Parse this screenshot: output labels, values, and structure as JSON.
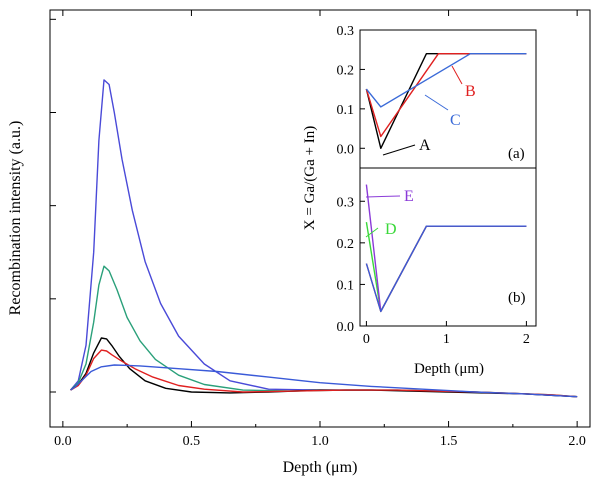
{
  "chart_data": [
    {
      "type": "line",
      "xlabel": "Depth (μm)",
      "ylabel": "Recombination intensity (a.u.)",
      "xlim": [
        -0.05,
        2.05
      ],
      "ylim": [
        0,
        4.1
      ],
      "x_ticks": [
        "0.0",
        "0.5",
        "1.0",
        "1.5",
        "2.0"
      ],
      "y_ticks_labeled": false,
      "grid": false,
      "series": [
        {
          "color": "#4a4ad8",
          "x": [
            0.03,
            0.06,
            0.09,
            0.12,
            0.14,
            0.16,
            0.18,
            0.2,
            0.23,
            0.27,
            0.32,
            0.38,
            0.45,
            0.55,
            0.65,
            0.8,
            1.0,
            1.2,
            1.5,
            1.8,
            2.0
          ],
          "y": [
            0.02,
            0.12,
            0.5,
            1.5,
            2.7,
            3.35,
            3.3,
            3.0,
            2.5,
            1.95,
            1.4,
            0.95,
            0.6,
            0.3,
            0.12,
            0.03,
            0.02,
            0.02,
            0.01,
            -0.02,
            -0.05
          ]
        },
        {
          "color": "#2aa07a",
          "x": [
            0.03,
            0.06,
            0.09,
            0.12,
            0.14,
            0.16,
            0.18,
            0.21,
            0.25,
            0.3,
            0.36,
            0.45,
            0.55,
            0.7,
            0.9,
            1.1,
            1.3,
            1.6,
            1.9,
            2.0
          ],
          "y": [
            0.02,
            0.1,
            0.3,
            0.75,
            1.15,
            1.35,
            1.3,
            1.1,
            0.8,
            0.55,
            0.35,
            0.18,
            0.08,
            0.02,
            0.01,
            0.02,
            0.02,
            0.0,
            -0.03,
            -0.05
          ]
        },
        {
          "color": "#000000",
          "x": [
            0.03,
            0.06,
            0.09,
            0.12,
            0.15,
            0.17,
            0.19,
            0.22,
            0.26,
            0.32,
            0.4,
            0.5,
            0.65,
            0.8,
            1.0,
            1.2,
            1.5,
            1.8,
            2.0
          ],
          "y": [
            0.02,
            0.08,
            0.2,
            0.42,
            0.58,
            0.57,
            0.5,
            0.38,
            0.25,
            0.12,
            0.04,
            0.0,
            -0.01,
            0.0,
            0.02,
            0.02,
            0.0,
            -0.02,
            -0.05
          ]
        },
        {
          "color": "#e02020",
          "x": [
            0.03,
            0.06,
            0.09,
            0.12,
            0.15,
            0.17,
            0.19,
            0.23,
            0.28,
            0.35,
            0.45,
            0.55,
            0.7,
            0.9,
            1.1,
            1.3,
            1.6,
            1.9,
            2.0
          ],
          "y": [
            0.02,
            0.07,
            0.18,
            0.36,
            0.45,
            0.44,
            0.4,
            0.33,
            0.25,
            0.16,
            0.07,
            0.03,
            0.0,
            0.01,
            0.02,
            0.02,
            0.0,
            -0.03,
            -0.05
          ]
        },
        {
          "color": "#3a5ad8",
          "x": [
            0.03,
            0.05,
            0.08,
            0.11,
            0.15,
            0.2,
            0.3,
            0.45,
            0.6,
            0.8,
            1.0,
            1.2,
            1.4,
            1.6,
            1.8,
            2.0
          ],
          "y": [
            0.02,
            0.06,
            0.14,
            0.22,
            0.27,
            0.29,
            0.28,
            0.25,
            0.22,
            0.16,
            0.1,
            0.06,
            0.03,
            0.0,
            -0.02,
            -0.05
          ]
        }
      ]
    },
    {
      "type": "line",
      "panel": "(a)",
      "ylabel": "X = Ga/(Ga + In)",
      "xlim": [
        -0.08,
        2.12
      ],
      "ylim": [
        -0.05,
        0.3
      ],
      "y_ticks": [
        "0.0",
        "0.1",
        "0.2",
        "0.3"
      ],
      "series": [
        {
          "name": "A",
          "color": "#000000",
          "x": [
            0.0,
            0.18,
            0.75,
            2.0
          ],
          "y": [
            0.15,
            0.0,
            0.24,
            0.24
          ]
        },
        {
          "name": "B",
          "color": "#e02020",
          "x": [
            0.0,
            0.18,
            0.9,
            2.0
          ],
          "y": [
            0.15,
            0.03,
            0.24,
            0.24
          ]
        },
        {
          "name": "C",
          "color": "#3a6ad8",
          "x": [
            0.0,
            0.18,
            1.3,
            2.0
          ],
          "y": [
            0.15,
            0.105,
            0.24,
            0.24
          ]
        }
      ],
      "annotations": [
        "A",
        "B",
        "C",
        "(a)"
      ]
    },
    {
      "type": "line",
      "panel": "(b)",
      "xlabel": "Depth (μm)",
      "xlim": [
        -0.08,
        2.12
      ],
      "ylim": [
        0,
        0.38
      ],
      "x_ticks": [
        "0",
        "1",
        "2"
      ],
      "y_ticks": [
        "0.0",
        "0.1",
        "0.2",
        "0.3"
      ],
      "series": [
        {
          "name": "D",
          "color": "#3ad83a",
          "x": [
            0.0,
            0.18,
            0.75,
            2.0
          ],
          "y": [
            0.25,
            0.035,
            0.24,
            0.24
          ]
        },
        {
          "name": "E",
          "color": "#8a3ad8",
          "x": [
            0.0,
            0.18,
            0.75,
            2.0
          ],
          "y": [
            0.34,
            0.035,
            0.24,
            0.24
          ]
        },
        {
          "color": "#e05020",
          "x": [
            0.0,
            0.18,
            0.75,
            2.0
          ],
          "y": [
            0.15,
            0.035,
            0.24,
            0.24
          ]
        },
        {
          "color": "#3a5ad8",
          "x": [
            0.0,
            0.18,
            0.75,
            2.0
          ],
          "y": [
            0.15,
            0.035,
            0.24,
            0.24
          ]
        }
      ],
      "annotations": [
        "D",
        "E",
        "(b)"
      ]
    }
  ]
}
